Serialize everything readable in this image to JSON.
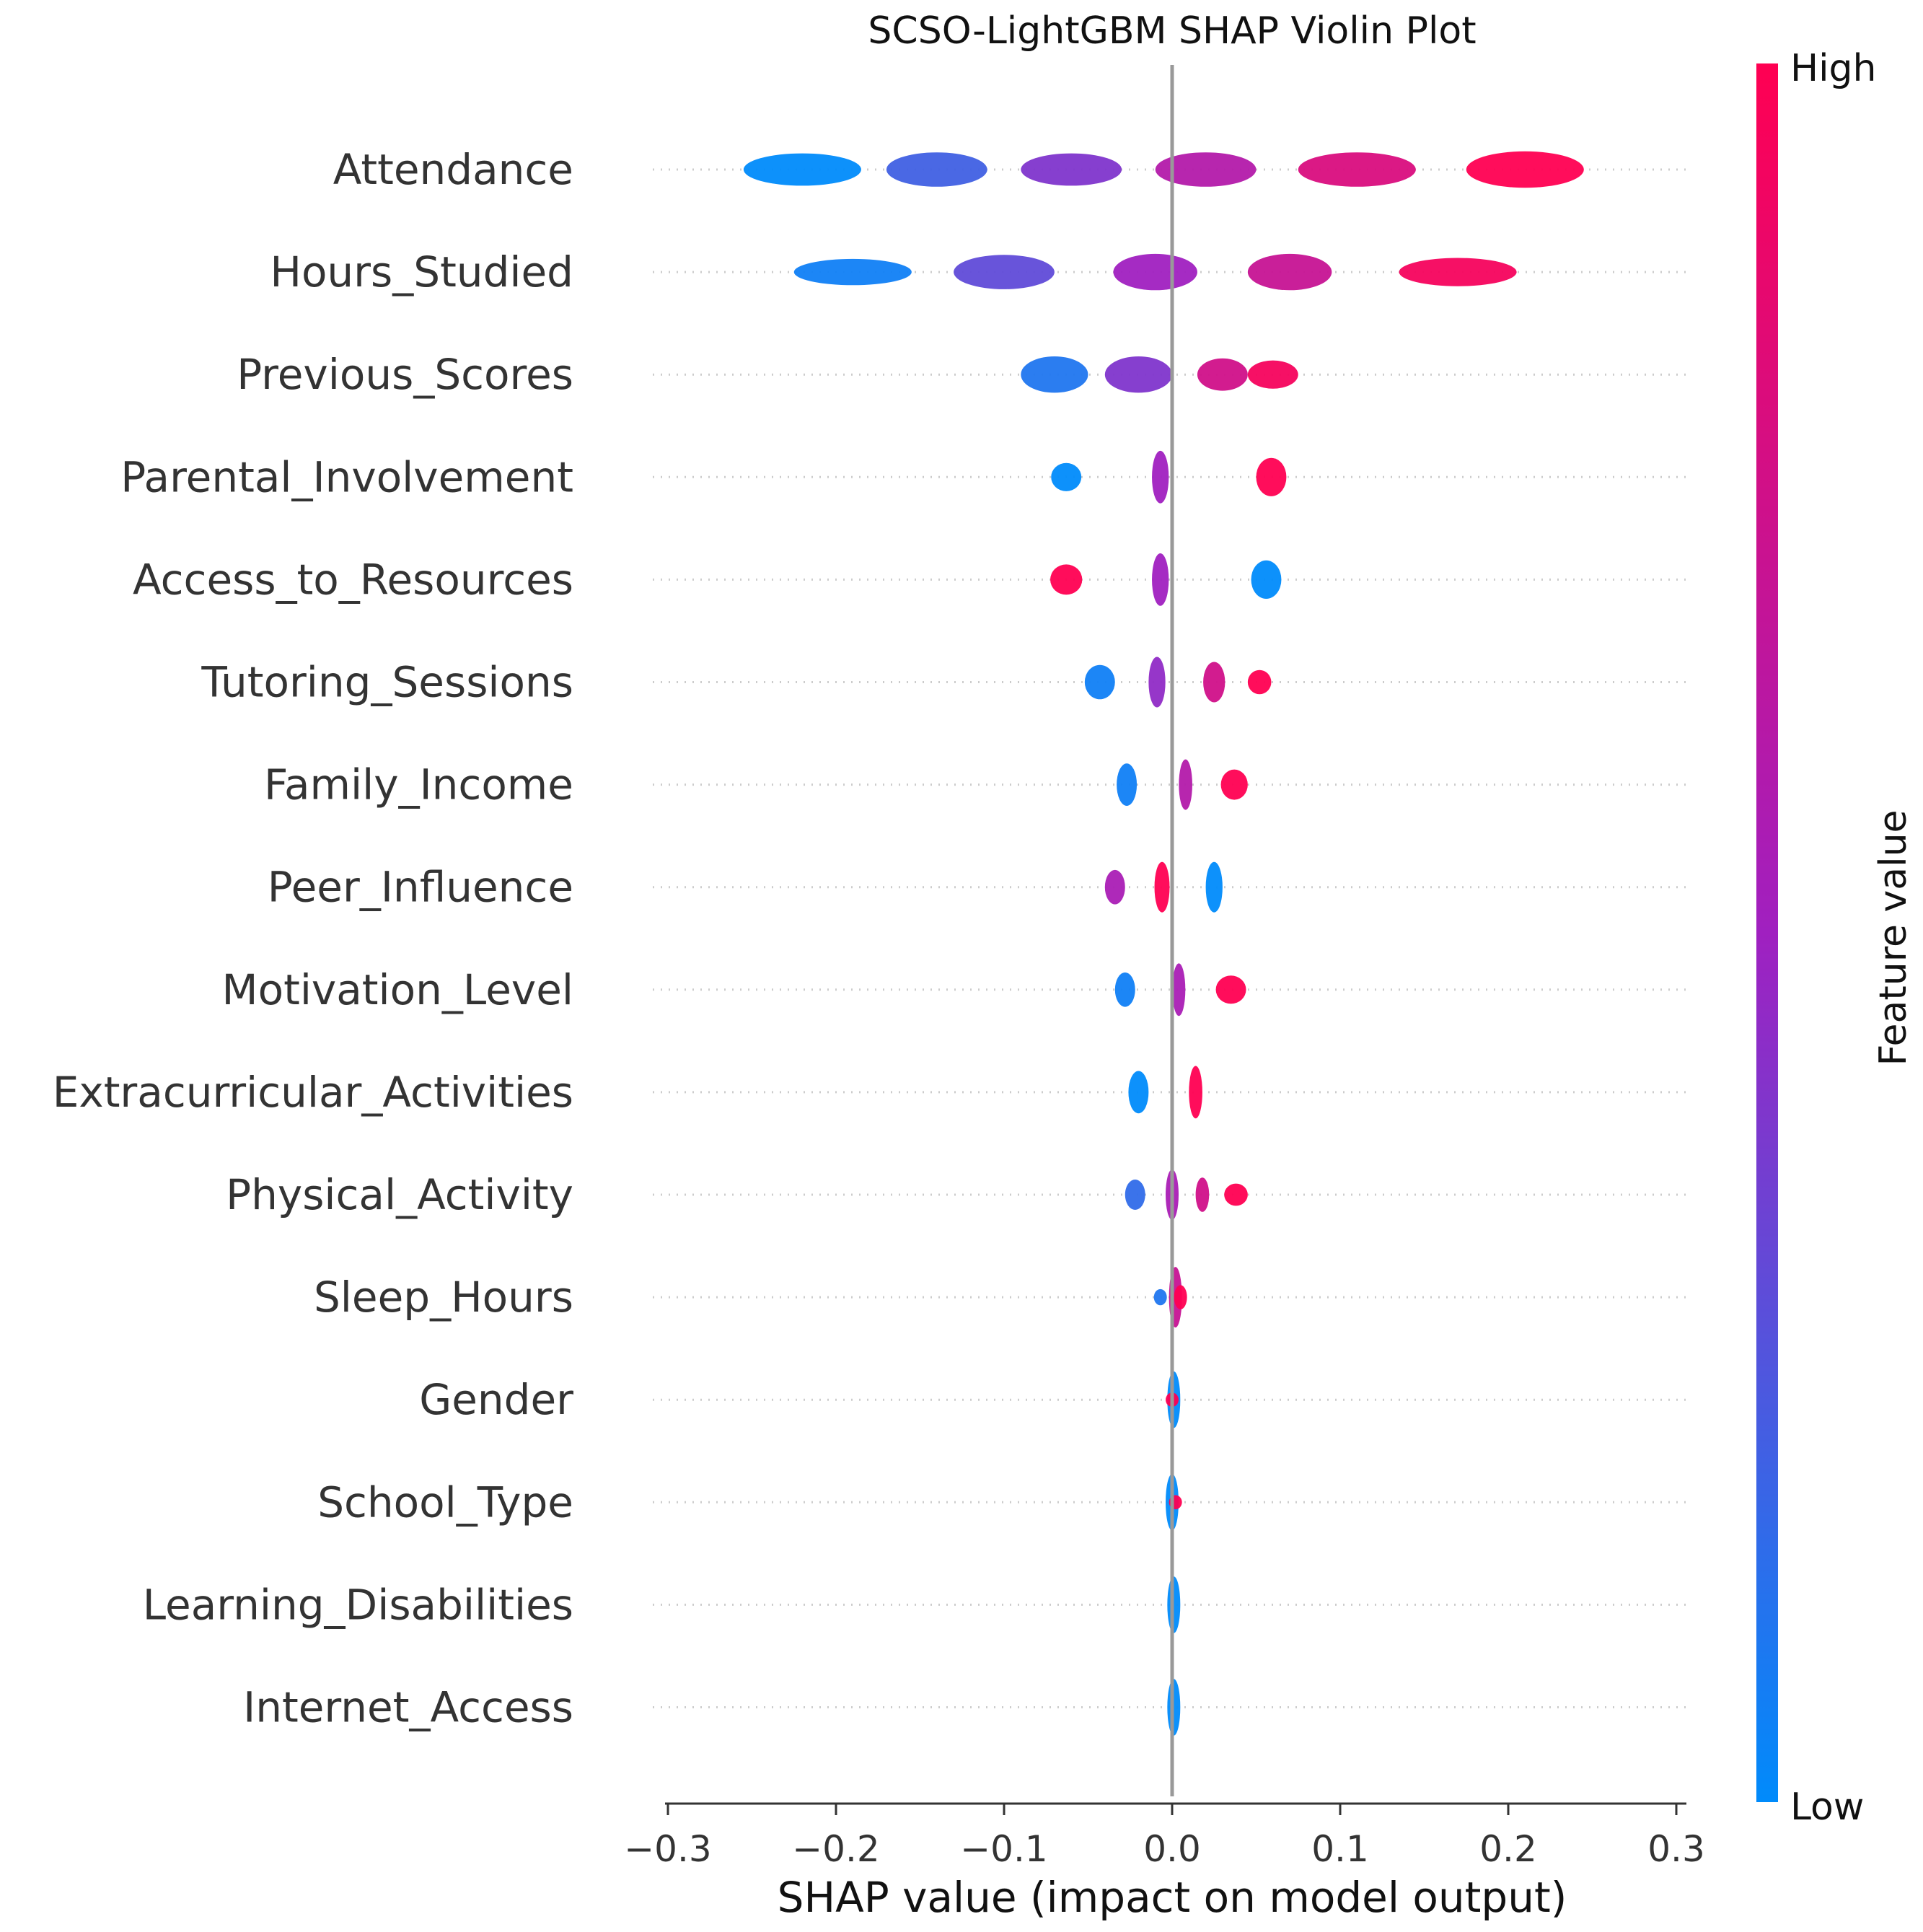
{
  "chart_data": {
    "type": "violin",
    "title": "SCSO-LightGBM SHAP Violin Plot",
    "xlabel": "SHAP value (impact on model output)",
    "xlim": [
      -0.31,
      0.31
    ],
    "xticks": [
      {
        "value": -0.3,
        "label": "−0.3"
      },
      {
        "value": -0.2,
        "label": "−0.2"
      },
      {
        "value": -0.1,
        "label": "−0.1"
      },
      {
        "value": 0.0,
        "label": "0.0"
      },
      {
        "value": 0.1,
        "label": "0.1"
      },
      {
        "value": 0.2,
        "label": "0.2"
      },
      {
        "value": 0.3,
        "label": "0.3"
      }
    ],
    "colorbar": {
      "label": "Feature value",
      "high_label": "High",
      "low_label": "Low",
      "high_color": "#ff0052",
      "mid_color": "#a020c0",
      "low_color": "#008bfb"
    },
    "features": [
      {
        "name": "Attendance",
        "clusters": [
          {
            "x": -0.22,
            "w": 0.07,
            "h": 0.32,
            "c": 0.0
          },
          {
            "x": -0.14,
            "w": 0.06,
            "h": 0.34,
            "c": 0.2
          },
          {
            "x": -0.06,
            "w": 0.06,
            "h": 0.32,
            "c": 0.4
          },
          {
            "x": 0.02,
            "w": 0.06,
            "h": 0.34,
            "c": 0.6
          },
          {
            "x": 0.11,
            "w": 0.07,
            "h": 0.34,
            "c": 0.8
          },
          {
            "x": 0.21,
            "w": 0.07,
            "h": 0.36,
            "c": 1.0
          }
        ]
      },
      {
        "name": "Hours_Studied",
        "clusters": [
          {
            "x": -0.19,
            "w": 0.07,
            "h": 0.26,
            "c": 0.05
          },
          {
            "x": -0.1,
            "w": 0.06,
            "h": 0.34,
            "c": 0.3
          },
          {
            "x": -0.01,
            "w": 0.05,
            "h": 0.36,
            "c": 0.5
          },
          {
            "x": 0.07,
            "w": 0.05,
            "h": 0.36,
            "c": 0.7
          },
          {
            "x": 0.17,
            "w": 0.07,
            "h": 0.28,
            "c": 0.95
          }
        ]
      },
      {
        "name": "Previous_Scores",
        "clusters": [
          {
            "x": -0.07,
            "w": 0.04,
            "h": 0.36,
            "c": 0.1
          },
          {
            "x": -0.02,
            "w": 0.04,
            "h": 0.36,
            "c": 0.4
          },
          {
            "x": 0.03,
            "w": 0.03,
            "h": 0.32,
            "c": 0.75
          },
          {
            "x": 0.06,
            "w": 0.03,
            "h": 0.28,
            "c": 0.95
          }
        ]
      },
      {
        "name": "Parental_Involvement",
        "clusters": [
          {
            "x": -0.063,
            "w": 0.018,
            "h": 0.28,
            "c": 0.0
          },
          {
            "x": -0.007,
            "w": 0.01,
            "h": 0.52,
            "c": 0.5
          },
          {
            "x": 0.059,
            "w": 0.018,
            "h": 0.38,
            "c": 1.0
          }
        ]
      },
      {
        "name": "Access_to_Resources",
        "clusters": [
          {
            "x": -0.063,
            "w": 0.019,
            "h": 0.3,
            "c": 1.0
          },
          {
            "x": -0.007,
            "w": 0.01,
            "h": 0.52,
            "c": 0.5
          },
          {
            "x": 0.056,
            "w": 0.018,
            "h": 0.38,
            "c": 0.0
          }
        ]
      },
      {
        "name": "Tutoring_Sessions",
        "clusters": [
          {
            "x": -0.043,
            "w": 0.018,
            "h": 0.34,
            "c": 0.05
          },
          {
            "x": -0.009,
            "w": 0.01,
            "h": 0.5,
            "c": 0.45
          },
          {
            "x": 0.025,
            "w": 0.013,
            "h": 0.4,
            "c": 0.75
          },
          {
            "x": 0.052,
            "w": 0.014,
            "h": 0.24,
            "c": 1.0
          }
        ]
      },
      {
        "name": "Family_Income",
        "clusters": [
          {
            "x": -0.027,
            "w": 0.012,
            "h": 0.42,
            "c": 0.05
          },
          {
            "x": 0.008,
            "w": 0.008,
            "h": 0.5,
            "c": 0.6
          },
          {
            "x": 0.037,
            "w": 0.016,
            "h": 0.3,
            "c": 1.0
          }
        ]
      },
      {
        "name": "Peer_Influence",
        "clusters": [
          {
            "x": -0.034,
            "w": 0.012,
            "h": 0.34,
            "c": 0.55
          },
          {
            "x": -0.006,
            "w": 0.009,
            "h": 0.5,
            "c": 1.0
          },
          {
            "x": 0.025,
            "w": 0.01,
            "h": 0.5,
            "c": 0.0
          }
        ]
      },
      {
        "name": "Motivation_Level",
        "clusters": [
          {
            "x": -0.028,
            "w": 0.012,
            "h": 0.34,
            "c": 0.05
          },
          {
            "x": 0.004,
            "w": 0.007,
            "h": 0.52,
            "c": 0.55
          },
          {
            "x": 0.035,
            "w": 0.018,
            "h": 0.28,
            "c": 1.0
          }
        ]
      },
      {
        "name": "Extracurricular_Activities",
        "clusters": [
          {
            "x": -0.02,
            "w": 0.012,
            "h": 0.42,
            "c": 0.0
          },
          {
            "x": 0.014,
            "w": 0.008,
            "h": 0.52,
            "c": 1.0
          }
        ]
      },
      {
        "name": "Physical_Activity",
        "clusters": [
          {
            "x": -0.022,
            "w": 0.012,
            "h": 0.3,
            "c": 0.15
          },
          {
            "x": 0.0,
            "w": 0.006,
            "h": 0.5,
            "c": 0.55
          },
          {
            "x": 0.018,
            "w": 0.008,
            "h": 0.34,
            "c": 0.75
          },
          {
            "x": 0.038,
            "w": 0.014,
            "h": 0.22,
            "c": 1.0
          }
        ]
      },
      {
        "name": "Sleep_Hours",
        "clusters": [
          {
            "x": -0.007,
            "w": 0.004,
            "h": 0.16,
            "c": 0.1
          },
          {
            "x": 0.002,
            "w": 0.004,
            "h": 0.6,
            "c": 0.7
          },
          {
            "x": 0.005,
            "w": 0.004,
            "h": 0.24,
            "c": 1.0
          }
        ]
      },
      {
        "name": "Gender",
        "clusters": [
          {
            "x": 0.001,
            "w": 0.003,
            "h": 0.56,
            "c": 0.0
          },
          {
            "x": 0.0,
            "w": 0.004,
            "h": 0.14,
            "c": 1.0
          }
        ]
      },
      {
        "name": "School_Type",
        "clusters": [
          {
            "x": 0.0,
            "w": 0.003,
            "h": 0.56,
            "c": 0.0
          },
          {
            "x": 0.002,
            "w": 0.004,
            "h": 0.14,
            "c": 1.0
          }
        ]
      },
      {
        "name": "Learning_Disabilities",
        "clusters": [
          {
            "x": 0.001,
            "w": 0.002,
            "h": 0.56,
            "c": 0.0
          }
        ]
      },
      {
        "name": "Internet_Access",
        "clusters": [
          {
            "x": 0.001,
            "w": 0.002,
            "h": 0.56,
            "c": 0.0
          }
        ]
      }
    ]
  }
}
